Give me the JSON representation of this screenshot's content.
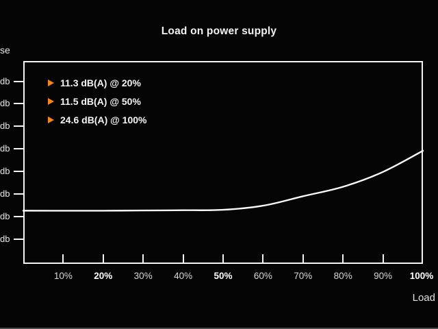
{
  "title": "Load on power supply",
  "annotations": [
    {
      "icon": "triangle-right-icon",
      "label": "11.3 dB(A) @ 20%"
    },
    {
      "icon": "triangle-right-icon",
      "label": "11.5 dB(A) @ 50%"
    },
    {
      "icon": "triangle-right-icon",
      "label": "24.6 dB(A) @ 100%"
    }
  ],
  "y_axis": {
    "title_fragment": "se",
    "tick_label_fragment": "db",
    "tick_count": 8
  },
  "x_axis": {
    "title": "Load",
    "tick_labels": [
      {
        "label": "10%",
        "bold": false
      },
      {
        "label": "20%",
        "bold": true
      },
      {
        "label": "30%",
        "bold": false
      },
      {
        "label": "40%",
        "bold": false
      },
      {
        "label": "50%",
        "bold": true
      },
      {
        "label": "60%",
        "bold": false
      },
      {
        "label": "70%",
        "bold": false
      },
      {
        "label": "80%",
        "bold": false
      },
      {
        "label": "90%",
        "bold": false
      },
      {
        "label": "100%",
        "bold": true
      }
    ]
  },
  "colors": {
    "background": "#050505",
    "axis": "#f5f5f5",
    "curve": "#fafafa",
    "accent_orange": "#f5861f",
    "muted_text": "#d8d8d8",
    "bottom_bar": "#4b4b4e"
  },
  "chart_data": {
    "type": "line",
    "title": "Load on power supply",
    "xlabel": "Load",
    "x_unit": "%",
    "ylabel_visible_fragment": "se",
    "y_tick_label_visible_fragment": "db",
    "x": [
      0,
      10,
      20,
      30,
      40,
      50,
      60,
      70,
      80,
      90,
      100
    ],
    "series": [
      {
        "name": "Noise dB(A)",
        "values": [
          11.3,
          11.3,
          11.3,
          11.35,
          11.4,
          11.5,
          12.4,
          14.5,
          16.6,
          19.9,
          24.6
        ]
      }
    ],
    "labeled_points": [
      {
        "x": 20,
        "y": 11.3,
        "label": "11.3 dB(A) @ 20%"
      },
      {
        "x": 50,
        "y": 11.5,
        "label": "11.5 dB(A) @ 50%"
      },
      {
        "x": 100,
        "y": 24.6,
        "label": "24.6 dB(A) @ 100%"
      }
    ],
    "xlim": [
      0,
      100
    ],
    "ylim": [
      -0.5,
      44.5
    ],
    "x_ticks": [
      10,
      20,
      30,
      40,
      50,
      60,
      70,
      80,
      90,
      100
    ],
    "y_ticks": [
      5,
      10,
      15,
      20,
      25,
      30,
      35,
      40
    ],
    "grid": false,
    "legend": false
  }
}
